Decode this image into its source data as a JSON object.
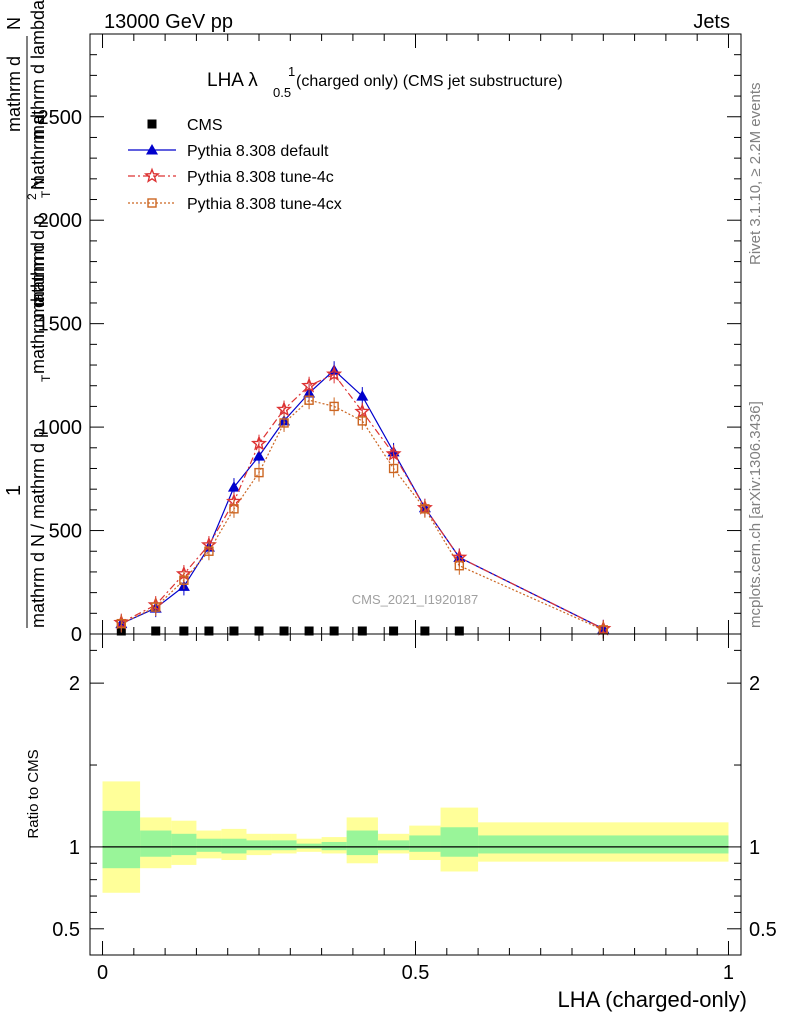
{
  "header": {
    "left": "13000 GeV pp",
    "right": "Jets"
  },
  "side_text": {
    "rivet": "Rivet 3.1.10, ≥ 2.2M events",
    "mcplots": "mcplots.cern.ch [arXiv:1306.3436]"
  },
  "watermark": "CMS_2021_I1920187",
  "colors": {
    "cms": "#000000",
    "default": "#0000cc",
    "tune4c": "#dd3333",
    "tune4cx": "#cc6622",
    "band_inner": "#99f599",
    "band_outer": "#ffff99"
  },
  "chart_data": [
    {
      "type": "line",
      "title_main": "LHA λ",
      "title_sup": "1",
      "title_sub": "0.5",
      "title_rest": " (charged only) (CMS jet substructure)",
      "ylabel_parts": [
        "1",
        "mathrm d N / mathrm d p",
        "T",
        "mathrm d",
        "mathrm d",
        "2",
        "N",
        "mathrm d p",
        "T",
        "mathrm d",
        "mathrm d lambda"
      ],
      "xlim": [
        -0.02,
        1.02
      ],
      "ylim": [
        0,
        2900
      ],
      "y_ticks": [
        0,
        500,
        1000,
        1500,
        2000,
        2500
      ],
      "y_tick_labels": [
        "0",
        "500",
        "1000",
        "1500",
        "2000",
        "2500"
      ],
      "x": [
        0.03,
        0.085,
        0.13,
        0.17,
        0.21,
        0.25,
        0.29,
        0.33,
        0.37,
        0.415,
        0.465,
        0.515,
        0.57,
        0.8
      ],
      "series": [
        {
          "name": "CMS",
          "marker": "square",
          "style": "none",
          "values": [
            2,
            3,
            3,
            3,
            3,
            3,
            3,
            3,
            3,
            3,
            3,
            3,
            3,
            null
          ]
        },
        {
          "name": "Pythia 8.308 default",
          "marker": "triangle",
          "style": "solid",
          "values": [
            50,
            125,
            230,
            420,
            710,
            860,
            1030,
            1165,
            1275,
            1150,
            880,
            610,
            370,
            25
          ]
        },
        {
          "name": "Pythia 8.308 tune-4c",
          "marker": "star",
          "style": "dashdot",
          "values": [
            55,
            140,
            290,
            430,
            640,
            920,
            1085,
            1200,
            1255,
            1075,
            870,
            610,
            370,
            25
          ]
        },
        {
          "name": "Pythia 8.308 tune-4cx",
          "marker": "opensquare",
          "style": "dotted",
          "values": [
            50,
            130,
            260,
            400,
            605,
            780,
            1020,
            1130,
            1100,
            1030,
            800,
            605,
            330,
            20
          ]
        }
      ]
    },
    {
      "type": "area",
      "ylabel": "Ratio to CMS",
      "xlabel": "LHA (charged-only)",
      "xlim": [
        -0.02,
        1.02
      ],
      "ylim": [
        0.34,
        2.3
      ],
      "y_ticks": [
        0.5,
        1,
        2
      ],
      "y_tick_labels": [
        "0.5",
        "1",
        "2"
      ],
      "x_ticks": [
        0,
        0.5,
        1
      ],
      "x_tick_labels": [
        "0",
        "0.5",
        "1"
      ],
      "bins": [
        0,
        0.06,
        0.11,
        0.15,
        0.19,
        0.23,
        0.27,
        0.31,
        0.35,
        0.39,
        0.44,
        0.49,
        0.54,
        0.6,
        1.0
      ],
      "inner_band": [
        [
          0.87,
          1.22
        ],
        [
          0.94,
          1.1
        ],
        [
          0.95,
          1.08
        ],
        [
          0.97,
          1.05
        ],
        [
          0.96,
          1.05
        ],
        [
          0.98,
          1.04
        ],
        [
          0.98,
          1.04
        ],
        [
          0.99,
          1.02
        ],
        [
          0.98,
          1.03
        ],
        [
          0.95,
          1.1
        ],
        [
          0.98,
          1.04
        ],
        [
          0.97,
          1.07
        ],
        [
          0.94,
          1.12
        ],
        [
          0.96,
          1.07
        ]
      ],
      "outer_band": [
        [
          0.72,
          1.4
        ],
        [
          0.87,
          1.18
        ],
        [
          0.89,
          1.16
        ],
        [
          0.93,
          1.1
        ],
        [
          0.92,
          1.11
        ],
        [
          0.95,
          1.08
        ],
        [
          0.96,
          1.08
        ],
        [
          0.97,
          1.05
        ],
        [
          0.96,
          1.06
        ],
        [
          0.9,
          1.18
        ],
        [
          0.96,
          1.08
        ],
        [
          0.92,
          1.13
        ],
        [
          0.85,
          1.24
        ],
        [
          0.91,
          1.15
        ]
      ]
    }
  ]
}
